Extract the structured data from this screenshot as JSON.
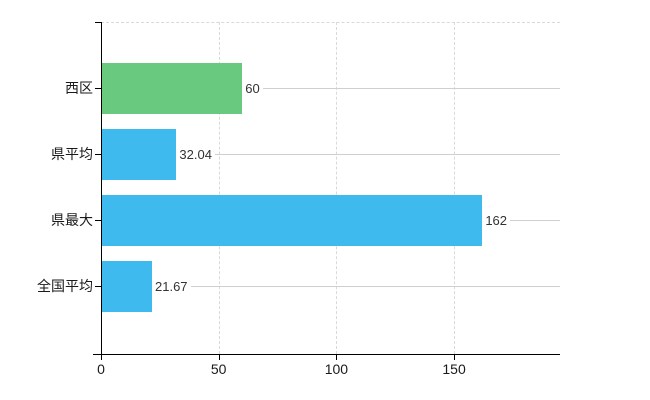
{
  "chart_data": {
    "type": "bar",
    "orientation": "horizontal",
    "title": "",
    "xlabel": "",
    "ylabel": "",
    "categories": [
      "西区",
      "県平均",
      "県最大",
      "全国平均"
    ],
    "values": [
      60,
      32.04,
      162,
      21.67
    ],
    "value_labels": [
      "60",
      "32.04",
      "162",
      "21.67"
    ],
    "bar_colors": [
      "#69c97e",
      "#3ebaef",
      "#3ebaef",
      "#3ebaef"
    ],
    "xlim": [
      0,
      195
    ],
    "x_ticks": [
      0,
      50,
      100,
      150
    ],
    "x_tick_labels": [
      "0",
      "50",
      "100",
      "150"
    ],
    "legend": "none",
    "grid": {
      "vertical_gridlines": "dashed",
      "top_border": "dashed",
      "category_leader_lines": "solid"
    }
  },
  "colors": {
    "bar_green": "#69c97e",
    "bar_blue": "#3ebaef",
    "grid_dashed": "#d9d9d9",
    "leader_line": "#cfcfcf",
    "axis": "#000000",
    "tick_text": "#1a1a1a",
    "value_text": "#333333",
    "background": "#ffffff"
  }
}
